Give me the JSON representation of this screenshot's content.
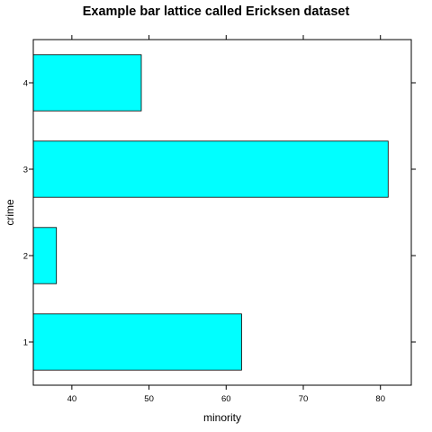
{
  "chart_data": {
    "type": "bar",
    "orientation": "horizontal",
    "title": "Example bar lattice called Ericksen dataset",
    "xlabel": "minority",
    "ylabel": "crime",
    "categories": [
      "1",
      "2",
      "3",
      "4"
    ],
    "values": [
      62,
      38,
      81,
      49
    ],
    "xlim": [
      35,
      84
    ],
    "x_ticks": [
      40,
      50,
      60,
      70,
      80
    ],
    "bar_color": "#00FFFF",
    "grid": false
  }
}
